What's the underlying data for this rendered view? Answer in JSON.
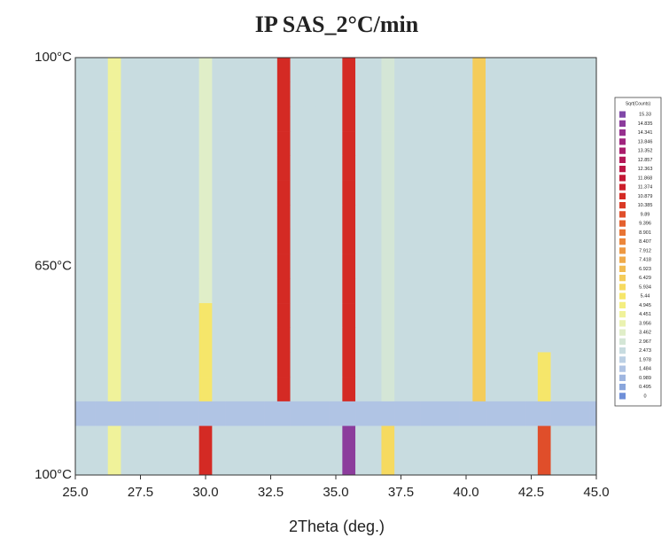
{
  "chart_data": {
    "type": "heatmap",
    "title": "IP SAS_2°C/min",
    "x_label": "2Theta (deg.)",
    "x": [
      25,
      25.5,
      26,
      26.5,
      27,
      27.5,
      28,
      28.5,
      29,
      29.5,
      30,
      30.5,
      31,
      31.5,
      32,
      32.5,
      33,
      33.5,
      34,
      34.5,
      35,
      35.5,
      36,
      36.5,
      37,
      37.5,
      38,
      38.5,
      39,
      39.5,
      40,
      40.5,
      41,
      41.5,
      42,
      42.5,
      43,
      43.5,
      44,
      44.5,
      45
    ],
    "xlim": [
      25,
      45
    ],
    "xticks": [
      {
        "value": 25,
        "label": "25.0"
      },
      27.5,
      {
        "value": 30,
        "label": "30.0"
      },
      32.5,
      {
        "value": 35,
        "label": "35.0"
      },
      37.5,
      {
        "value": 40,
        "label": "40.0"
      },
      42.5,
      {
        "value": 45,
        "label": "45.0"
      }
    ],
    "y_labels": [
      "100°C",
      "650°C",
      "100°C"
    ],
    "z": [
      [
        2.5,
        2.5,
        2.5,
        4.5,
        2.5,
        2.5,
        2.5,
        2.5,
        2.5,
        2.5,
        3.5,
        2.5,
        2.5,
        2.5,
        2.5,
        2.5,
        11,
        2.5,
        2.5,
        2.5,
        2.5,
        11,
        2.5,
        2.5,
        3,
        2.5,
        2.5,
        2.5,
        2.5,
        2.5,
        2.5,
        6.5,
        2.5,
        2.5,
        2.5,
        2.5,
        2.5,
        2.5,
        2.5,
        2.5,
        2.5
      ],
      [
        2.5,
        2.5,
        2.5,
        4.5,
        2.5,
        2.5,
        2.5,
        2.5,
        2.5,
        2.5,
        3.5,
        2.5,
        2.5,
        2.5,
        2.5,
        2.5,
        11,
        2.5,
        2.5,
        2.5,
        2.5,
        11,
        2.5,
        2.5,
        3,
        2.5,
        2.5,
        2.5,
        2.5,
        2.5,
        2.5,
        6.5,
        2.5,
        2.5,
        2.5,
        2.5,
        2.5,
        2.5,
        2.5,
        2.5,
        2.5
      ],
      [
        2.5,
        2.5,
        2.5,
        4.5,
        2.5,
        2.5,
        2.5,
        2.5,
        2.5,
        2.5,
        3.5,
        2.5,
        2.5,
        2.5,
        2.5,
        2.5,
        11,
        2.5,
        2.5,
        2.5,
        2.5,
        11,
        2.5,
        2.5,
        3,
        2.5,
        2.5,
        2.5,
        2.5,
        2.5,
        2.5,
        6.5,
        2.5,
        2.5,
        2.5,
        2.5,
        2.5,
        2.5,
        2.5,
        2.5,
        2.5
      ],
      [
        2.5,
        2.5,
        2.5,
        4.5,
        2.5,
        2.5,
        2.5,
        2.5,
        2.5,
        2.5,
        3.5,
        2.5,
        2.5,
        2.5,
        2.5,
        2.5,
        11,
        2.5,
        2.5,
        2.5,
        2.5,
        11,
        2.5,
        2.5,
        3,
        2.5,
        2.5,
        2.5,
        2.5,
        2.5,
        2.5,
        6.5,
        2.5,
        2.5,
        2.5,
        2.5,
        2.5,
        2.5,
        2.5,
        2.5,
        2.5
      ],
      [
        2.5,
        2.5,
        2.5,
        4.5,
        2.5,
        2.5,
        2.5,
        2.5,
        2.5,
        2.5,
        3.5,
        2.5,
        2.5,
        2.5,
        2.5,
        2.5,
        11,
        2.5,
        2.5,
        2.5,
        2.5,
        11,
        2.5,
        2.5,
        3,
        2.5,
        2.5,
        2.5,
        2.5,
        2.5,
        2.5,
        6.5,
        2.5,
        2.5,
        2.5,
        2.5,
        2.5,
        2.5,
        2.5,
        2.5,
        2.5
      ],
      [
        2.5,
        2.5,
        2.5,
        4.5,
        2.5,
        2.5,
        2.5,
        2.5,
        2.5,
        2.5,
        3.5,
        2.5,
        2.5,
        2.5,
        2.5,
        2.5,
        11,
        2.5,
        2.5,
        2.5,
        2.5,
        11,
        2.5,
        2.5,
        3,
        2.5,
        2.5,
        2.5,
        2.5,
        2.5,
        2.5,
        6.5,
        2.5,
        2.5,
        2.5,
        2.5,
        2.5,
        2.5,
        2.5,
        2.5,
        2.5
      ],
      [
        2.5,
        2.5,
        2.5,
        4.5,
        2.5,
        2.5,
        2.5,
        2.5,
        2.5,
        2.5,
        3.5,
        2.5,
        2.5,
        2.5,
        2.5,
        2.5,
        11,
        2.5,
        2.5,
        2.5,
        2.5,
        11,
        2.5,
        2.5,
        3,
        2.5,
        2.5,
        2.5,
        2.5,
        2.5,
        2.5,
        6.5,
        2.5,
        2.5,
        2.5,
        2.5,
        2.5,
        2.5,
        2.5,
        2.5,
        2.5
      ],
      [
        2.5,
        2.5,
        2.5,
        4.5,
        2.5,
        2.5,
        2.5,
        2.5,
        2.5,
        2.5,
        3.5,
        2.5,
        2.5,
        2.5,
        2.5,
        2.5,
        11,
        2.5,
        2.5,
        2.5,
        2.5,
        11,
        2.5,
        2.5,
        3,
        2.5,
        2.5,
        2.5,
        2.5,
        2.5,
        2.5,
        6.5,
        2.5,
        2.5,
        2.5,
        2.5,
        2.5,
        2.5,
        2.5,
        2.5,
        2.5
      ],
      [
        2.5,
        2.5,
        2.5,
        4.5,
        2.5,
        2.5,
        2.5,
        2.5,
        2.5,
        2.5,
        3.5,
        2.5,
        2.5,
        2.5,
        2.5,
        2.5,
        11,
        2.5,
        2.5,
        2.5,
        2.5,
        11,
        2.5,
        2.5,
        3,
        2.5,
        2.5,
        2.5,
        2.5,
        2.5,
        2.5,
        6.5,
        2.5,
        2.5,
        2.5,
        2.5,
        2.5,
        2.5,
        2.5,
        2.5,
        2.5
      ],
      [
        2.5,
        2.5,
        2.5,
        4.5,
        2.5,
        2.5,
        2.5,
        2.5,
        2.5,
        2.5,
        3.5,
        2.5,
        2.5,
        2.5,
        2.5,
        2.5,
        11,
        2.5,
        2.5,
        2.5,
        2.5,
        11,
        2.5,
        2.5,
        3,
        2.5,
        2.5,
        2.5,
        2.5,
        2.5,
        2.5,
        6.5,
        2.5,
        2.5,
        2.5,
        2.5,
        2.5,
        2.5,
        2.5,
        2.5,
        2.5
      ],
      [
        2.5,
        2.5,
        2.5,
        4.5,
        2.5,
        2.5,
        2.5,
        2.5,
        2.5,
        2.5,
        5.5,
        2.5,
        2.5,
        2.5,
        2.5,
        2.5,
        11,
        2.5,
        2.5,
        2.5,
        2.5,
        11,
        2.5,
        2.5,
        3,
        2.5,
        2.5,
        2.5,
        2.5,
        2.5,
        2.5,
        6.5,
        2.5,
        2.5,
        2.5,
        2.5,
        2.5,
        2.5,
        2.5,
        2.5,
        2.5
      ],
      [
        2.5,
        2.5,
        2.5,
        4.5,
        2.5,
        2.5,
        2.5,
        2.5,
        2.5,
        2.5,
        5.5,
        2.5,
        2.5,
        2.5,
        2.5,
        2.5,
        11,
        2.5,
        2.5,
        2.5,
        2.5,
        11,
        2.5,
        2.5,
        3,
        2.5,
        2.5,
        2.5,
        2.5,
        2.5,
        2.5,
        6.5,
        2.5,
        2.5,
        2.5,
        2.5,
        2.5,
        2.5,
        2.5,
        2.5,
        2.5
      ],
      [
        2.5,
        2.5,
        2.5,
        4.5,
        2.5,
        2.5,
        2.5,
        2.5,
        2.5,
        2.5,
        5.5,
        2.5,
        2.5,
        2.5,
        2.5,
        2.5,
        11,
        2.5,
        2.5,
        2.5,
        2.5,
        11,
        2.5,
        2.5,
        3,
        2.5,
        2.5,
        2.5,
        2.5,
        2.5,
        2.5,
        6.5,
        2.5,
        2.5,
        2.5,
        2.5,
        5.5,
        2.5,
        2.5,
        2.5,
        2.5
      ],
      [
        2.5,
        2.5,
        2.5,
        4.5,
        2.5,
        2.5,
        2.5,
        2.5,
        2.5,
        2.5,
        5.5,
        2.5,
        2.5,
        2.5,
        2.5,
        2.5,
        11,
        2.5,
        2.5,
        2.5,
        2.5,
        11,
        2.5,
        2.5,
        3,
        2.5,
        2.5,
        2.5,
        2.5,
        2.5,
        2.5,
        6.5,
        2.5,
        2.5,
        2.5,
        2.5,
        5.5,
        2.5,
        2.5,
        2.5,
        2.5
      ],
      [
        1.5,
        1.5,
        1.5,
        1.5,
        1.5,
        1.5,
        1.5,
        1.5,
        1.5,
        1.5,
        1.5,
        1.5,
        1.5,
        1.5,
        1.5,
        1.5,
        1.5,
        1.5,
        1.5,
        1.5,
        1.5,
        1.5,
        1.5,
        1.5,
        1.5,
        1.5,
        1.5,
        1.5,
        1.5,
        1.5,
        1.5,
        1.5,
        1.5,
        1.5,
        1.5,
        1.5,
        1.5,
        1.5,
        1.5,
        1.5,
        1.5
      ],
      [
        2.5,
        2.5,
        2.5,
        4.5,
        2.5,
        2.5,
        2.5,
        2.5,
        2.5,
        2.5,
        11,
        2.5,
        2.5,
        2.5,
        2.5,
        2.5,
        2.5,
        2.5,
        2.5,
        2.5,
        2.5,
        15,
        2.5,
        2.5,
        6,
        2.5,
        2.5,
        2.5,
        2.5,
        2.5,
        2.5,
        2.5,
        2.5,
        2.5,
        2.5,
        2.5,
        10,
        2.5,
        2.5,
        2.5,
        2.5
      ],
      [
        2.5,
        2.5,
        2.5,
        4.5,
        2.5,
        2.5,
        2.5,
        2.5,
        2.5,
        2.5,
        11,
        2.5,
        2.5,
        2.5,
        2.5,
        2.5,
        2.5,
        2.5,
        2.5,
        2.5,
        2.5,
        15,
        2.5,
        2.5,
        6,
        2.5,
        2.5,
        2.5,
        2.5,
        2.5,
        2.5,
        2.5,
        2.5,
        2.5,
        2.5,
        2.5,
        10,
        2.5,
        2.5,
        2.5,
        2.5
      ]
    ],
    "colorbar": {
      "title": "Sqrt(Counts)",
      "ticks": [
        0,
        0.495,
        0.989,
        1.484,
        1.978,
        2.473,
        2.967,
        3.462,
        3.956,
        4.451,
        4.945,
        5.44,
        5.934,
        6.429,
        6.923,
        7.418,
        7.912,
        8.407,
        8.901,
        9.396,
        9.89,
        10.385,
        10.879,
        11.374,
        11.868,
        12.363,
        12.857,
        13.352,
        13.846,
        14.341,
        14.835,
        15.33
      ],
      "colors": [
        "#6f8fd8",
        "#8aa6dc",
        "#9fb6e0",
        "#b0c4e4",
        "#bcd0e4",
        "#c8dce0",
        "#d4e6d6",
        "#e0eec8",
        "#eaf2b0",
        "#f0f29a",
        "#f4ee80",
        "#f6e66a",
        "#f6da60",
        "#f4cc5a",
        "#f2bc52",
        "#f0aa4a",
        "#ee9842",
        "#ec863a",
        "#e87434",
        "#e4602e",
        "#e04e2a",
        "#da3a26",
        "#d42a24",
        "#cc1e2a",
        "#c41836",
        "#bc1646",
        "#b41858",
        "#aa1c6c",
        "#a0247e",
        "#96308e",
        "#8c3c9c",
        "#8048a8"
      ]
    }
  }
}
